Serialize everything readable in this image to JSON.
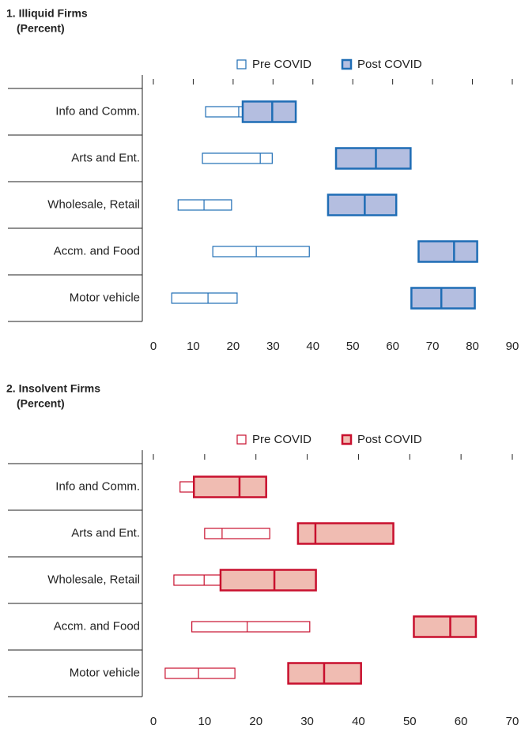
{
  "chart_data": [
    {
      "type": "box-range",
      "title": "1. Illiquid Firms",
      "subtitle": "(Percent)",
      "categories": [
        "Info and Comm.",
        "Arts and Ent.",
        "Wholesale, Retail",
        "Accm. and Food",
        "Motor vehicle"
      ],
      "series": [
        {
          "name": "Pre COVID",
          "color": "#1f6db5",
          "fill": "#ffffff",
          "values": [
            [
              13.1,
              21.4,
              28.0
            ],
            [
              12.3,
              26.8,
              29.8
            ],
            [
              6.2,
              12.7,
              19.6
            ],
            [
              14.9,
              25.8,
              39.1
            ],
            [
              4.6,
              13.7,
              21.0
            ]
          ]
        },
        {
          "name": "Post COVID",
          "color": "#1f6db5",
          "fill": "#b4bee0",
          "values": [
            [
              22.4,
              29.8,
              35.7
            ],
            [
              45.8,
              55.8,
              64.5
            ],
            [
              43.8,
              53.0,
              60.9
            ],
            [
              66.5,
              75.4,
              81.2
            ],
            [
              64.7,
              72.2,
              80.6
            ]
          ]
        }
      ],
      "xlim": [
        0,
        90
      ],
      "xticks": [
        0,
        10,
        20,
        30,
        40,
        50,
        60,
        70,
        80,
        90
      ]
    },
    {
      "type": "box-range",
      "title": "2. Insolvent Firms",
      "subtitle": "(Percent)",
      "categories": [
        "Info and Comm.",
        "Arts and Ent.",
        "Wholesale, Retail",
        "Accm. and Food",
        "Motor vehicle"
      ],
      "series": [
        {
          "name": "Pre COVID",
          "color": "#c8102e",
          "fill": "#ffffff",
          "values": [
            [
              5.2,
              12.9,
              18.0
            ],
            [
              10.0,
              13.4,
              22.7
            ],
            [
              4.0,
              9.9,
              21.1
            ],
            [
              7.5,
              18.3,
              30.5
            ],
            [
              2.3,
              8.8,
              15.9
            ]
          ]
        },
        {
          "name": "Post COVID",
          "color": "#c8102e",
          "fill": "#f0bcb2",
          "values": [
            [
              7.9,
              16.8,
              22.0
            ],
            [
              28.2,
              31.6,
              46.8
            ],
            [
              13.1,
              23.6,
              31.7
            ],
            [
              50.8,
              57.9,
              62.9
            ],
            [
              26.3,
              33.3,
              40.5
            ]
          ]
        }
      ],
      "xlim": [
        0,
        70
      ],
      "xticks": [
        0,
        10,
        20,
        30,
        40,
        50,
        60,
        70
      ]
    }
  ]
}
